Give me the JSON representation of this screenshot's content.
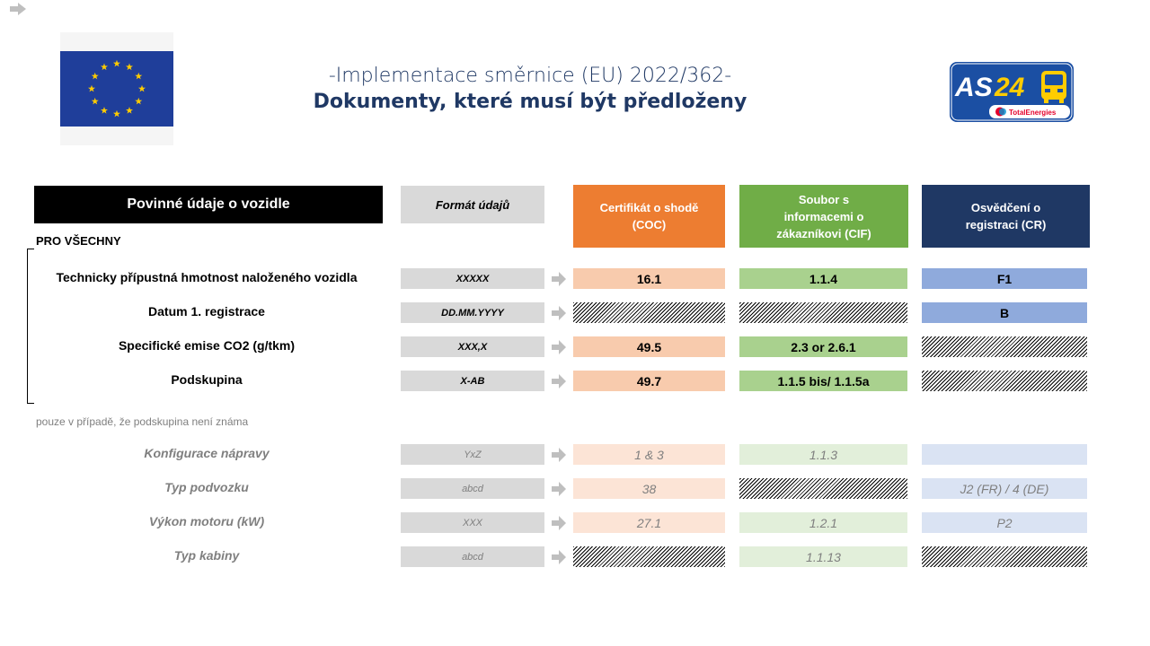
{
  "header": {
    "title_line1": "-Implementace směrnice (EU)  2022/362-",
    "title_line2": "Dokumenty, které musí být předloženy"
  },
  "logo": {
    "main": "AS24",
    "sub": "TotalEnergies"
  },
  "table_header": {
    "main": "Povinné údaje o vozidle",
    "format": "Formát údajů",
    "coc": [
      "Certifikát o shodě",
      "(COC)"
    ],
    "cif": [
      "Soubor s",
      "informacemi o",
      "zákazníkovi (CIF)"
    ],
    "cr": [
      "Osvědčení o",
      "registraci (CR)"
    ]
  },
  "sections": {
    "all": "PRO VŠECHNY",
    "note": "pouze v případě, že podskupina není známa"
  },
  "rows_main": [
    {
      "label": "Technicky přípustná hmotnost naloženého vozidla",
      "format": "XXXXX",
      "coc": "16.1",
      "cif": "1.1.4",
      "cr": "F1"
    },
    {
      "label": "Datum 1. registrace",
      "format": "DD.MM.YYYY",
      "coc": "",
      "cif": "",
      "cr": "B"
    },
    {
      "label": "Specifické emise CO2 (g/tkm)",
      "format": "XXX,X",
      "coc": "49.5",
      "cif": "2.3 or 2.6.1",
      "cr": ""
    },
    {
      "label": "Podskupina",
      "format": "X-AB",
      "coc": "49.7",
      "cif": "1.1.5 bis/ 1.1.5a",
      "cr": ""
    }
  ],
  "rows_optional": [
    {
      "label": "Konfigurace nápravy",
      "format": "YxZ",
      "coc": "1 & 3",
      "cif": "1.1.3",
      "cr": ""
    },
    {
      "label": "Typ podvozku",
      "format": "abcd",
      "coc": "38",
      "cif": "",
      "cr": "J2 (FR) / 4 (DE)"
    },
    {
      "label": "Výkon motoru (kW)",
      "format": "XXX",
      "coc": "27.1",
      "cif": "1.2.1",
      "cr": "P2"
    },
    {
      "label": "Typ kabiny",
      "format": "abcd",
      "coc": "",
      "cif": "1.1.13",
      "cr": ""
    }
  ],
  "colors": {
    "title": "#1f3864",
    "coc_header": "#ed7d31",
    "cif_header": "#70ad47",
    "cr_header": "#1f3864",
    "eu_blue": "#1f3e9a",
    "eu_star": "#ffcc00"
  },
  "icons": {
    "nav": "arrow-right-icon",
    "row_arrow": "arrow-right-icon"
  }
}
